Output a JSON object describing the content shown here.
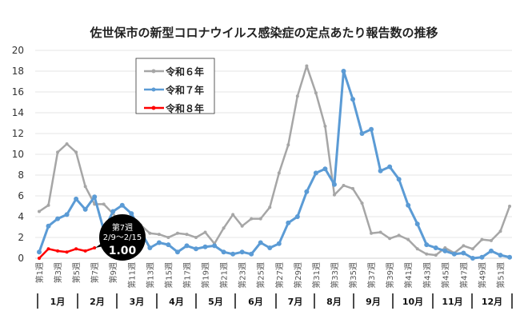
{
  "chart_data": {
    "type": "line",
    "title": "佐世保市の新型コロナウイルス感染症の定点あたり報告数の推移",
    "xlabel": "",
    "ylabel": "",
    "ylim": [
      0,
      20
    ],
    "yticks": [
      "0",
      "2",
      "4",
      "6",
      "8",
      "10",
      "12",
      "14",
      "16",
      "18",
      "20"
    ],
    "week_labels": [
      "第1週",
      "第3週",
      "第5週",
      "第7週",
      "第9週",
      "第11週",
      "第13週",
      "第15週",
      "第17週",
      "第19週",
      "第21週",
      "第23週",
      "第25週",
      "第27週",
      "第29週",
      "第31週",
      "第33週",
      "第35週",
      "第37週",
      "第39週",
      "第41週",
      "第43週",
      "第45週",
      "第47週",
      "第49週",
      "第51週"
    ],
    "months": [
      "1月",
      "2月",
      "3月",
      "4月",
      "5月",
      "6月",
      "7月",
      "8月",
      "9月",
      "10月",
      "11月",
      "12月"
    ],
    "legend_position": "top-center",
    "series": [
      {
        "name": "令和６年",
        "color": "#a6a6a6",
        "values": [
          4.5,
          5.1,
          10.2,
          11.0,
          10.2,
          6.9,
          5.2,
          5.2,
          4.3,
          3.2,
          3.4,
          3.2,
          2.4,
          2.3,
          2.0,
          2.4,
          2.3,
          2.0,
          2.5,
          1.4,
          2.9,
          4.2,
          3.1,
          3.8,
          3.8,
          4.9,
          8.2,
          10.9,
          15.6,
          18.5,
          15.9,
          12.7,
          6.1,
          7.0,
          6.7,
          5.3,
          2.4,
          2.5,
          1.9,
          2.2,
          1.8,
          0.9,
          0.4,
          0.3,
          1.0,
          0.5,
          1.2,
          0.9,
          1.8,
          1.7,
          2.6,
          5.0
        ]
      },
      {
        "name": "令和７年",
        "color": "#5b9bd5",
        "values": [
          0.6,
          3.1,
          3.8,
          4.2,
          5.7,
          4.7,
          5.9,
          2.7,
          4.5,
          5.1,
          4.3,
          2.6,
          1.0,
          1.5,
          1.3,
          0.6,
          1.2,
          0.9,
          1.1,
          1.2,
          0.6,
          0.4,
          0.6,
          0.4,
          1.5,
          1.0,
          1.4,
          3.4,
          4.0,
          6.4,
          8.2,
          8.6,
          7.1,
          18.0,
          15.3,
          12.0,
          12.4,
          8.4,
          8.8,
          7.6,
          5.1,
          3.3,
          1.3,
          1.0,
          0.7,
          0.4,
          0.5,
          0.0,
          0.1,
          0.7,
          0.3,
          0.1
        ]
      },
      {
        "name": "令和８年",
        "color": "#ff0000",
        "values": [
          0.0,
          0.9,
          0.7,
          0.6,
          0.9,
          0.7,
          1.0
        ]
      }
    ],
    "annotation": {
      "week": "第7週",
      "range": "2/9～2/15",
      "value": "1.00"
    }
  }
}
